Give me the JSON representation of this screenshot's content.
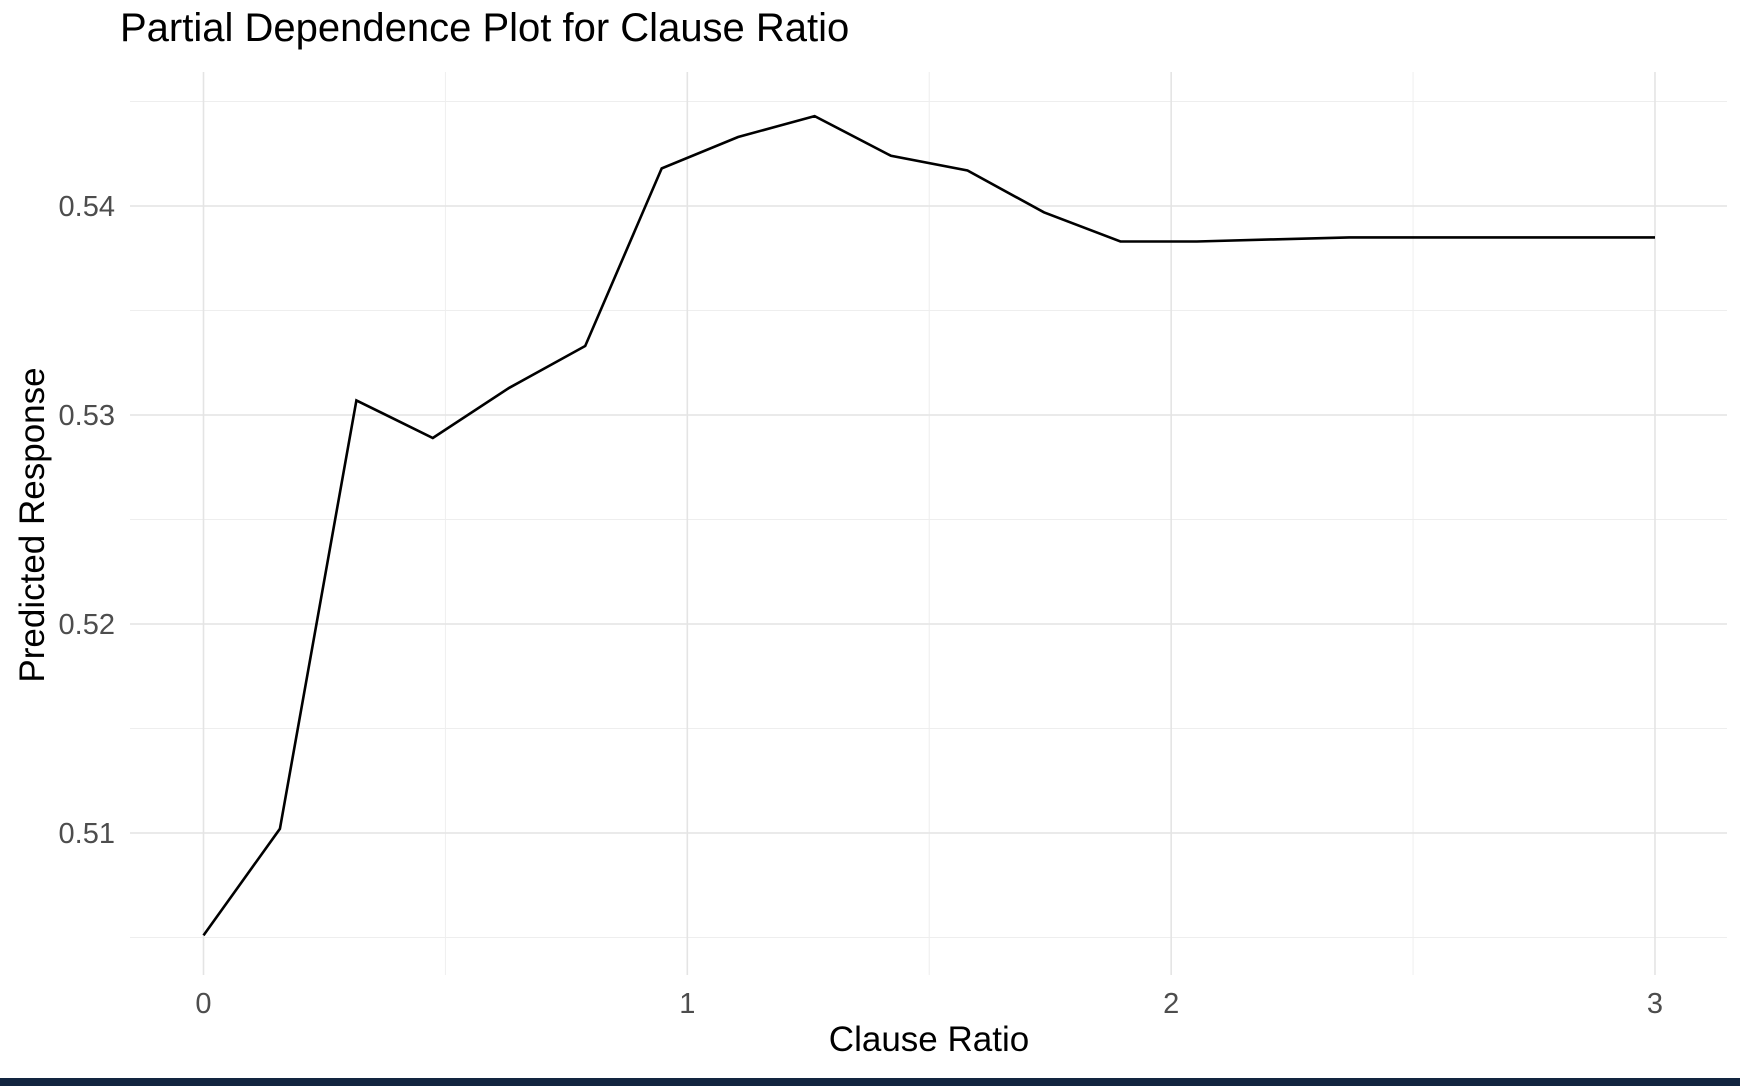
{
  "page": {
    "background": "#ffffff",
    "bottom_bar_color": "#122540"
  },
  "chart_data": {
    "type": "line",
    "title": "Partial Dependence Plot for Clause Ratio",
    "xlabel": "Clause Ratio",
    "ylabel": "Predicted Response",
    "x": [
      0,
      0.158,
      0.316,
      0.474,
      0.632,
      0.789,
      0.947,
      1.105,
      1.263,
      1.421,
      1.579,
      1.737,
      1.895,
      2.053,
      2.211,
      2.368,
      2.526,
      2.684,
      2.842,
      3.0
    ],
    "y": [
      0.5051,
      0.5102,
      0.5307,
      0.5289,
      0.5313,
      0.5333,
      0.5418,
      0.5433,
      0.5443,
      0.5424,
      0.5417,
      0.5397,
      0.5383,
      0.5383,
      0.5384,
      0.5385,
      0.5385,
      0.5385,
      0.5385,
      0.5385
    ],
    "x_ticks": {
      "values": [
        0,
        1,
        2,
        3
      ],
      "labels": [
        "0",
        "1",
        "2",
        "3"
      ]
    },
    "y_ticks": {
      "values": [
        0.51,
        0.52,
        0.53,
        0.54
      ],
      "labels": [
        "0.51",
        "0.52",
        "0.53",
        "0.54"
      ]
    },
    "x_minor_gridlines": [
      0.5,
      1.5,
      2.5
    ],
    "y_minor_gridlines": [
      0.505,
      0.515,
      0.525,
      0.535,
      0.545
    ],
    "xlim": [
      -0.152,
      3.149
    ],
    "ylim": [
      0.5032,
      0.5464
    ],
    "grid": "on",
    "legend": "none",
    "line_color": "#000000",
    "grid_major_color": "#e4e4e4",
    "grid_minor_color": "#eeeeee",
    "tick_label_color": "#4d4d4d",
    "title_color": "#000000"
  }
}
